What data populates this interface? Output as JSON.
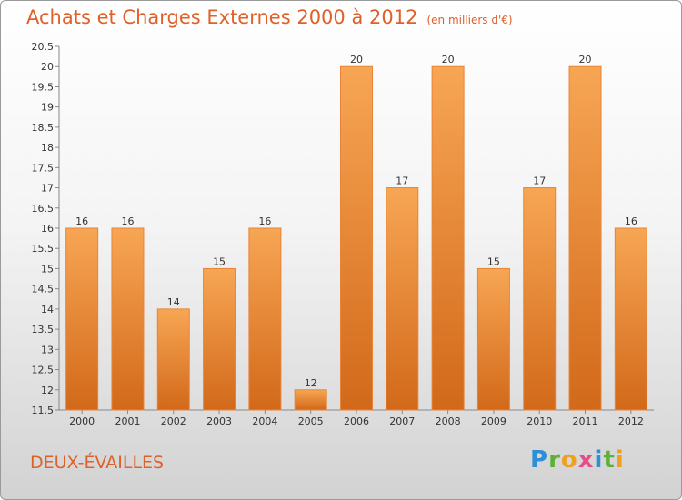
{
  "header": {
    "title": "Achats et Charges Externes 2000 à 2012",
    "subtitle": "(en milliers d'€)"
  },
  "footer": {
    "commune": "DEUX-ÉVAILLES",
    "logo_letters": [
      "P",
      "r",
      "o",
      "x",
      "i",
      "t",
      "i"
    ]
  },
  "colors": {
    "bar_light": "#f7a654",
    "bar_dark": "#d2691a",
    "title": "#e0602a"
  },
  "chart_data": {
    "type": "bar",
    "categories": [
      "2000",
      "2001",
      "2002",
      "2003",
      "2004",
      "2005",
      "2006",
      "2007",
      "2008",
      "2009",
      "2010",
      "2011",
      "2012"
    ],
    "values": [
      16,
      16,
      14,
      15,
      16,
      12,
      20,
      17,
      20,
      15,
      17,
      20,
      16
    ],
    "ylim": [
      11.5,
      20.5
    ],
    "yticks": [
      "11.5",
      "12",
      "12.5",
      "13",
      "13.5",
      "14",
      "14.5",
      "15",
      "15.5",
      "16",
      "16.5",
      "17",
      "17.5",
      "18",
      "18.5",
      "19",
      "19.5",
      "20",
      "20.5"
    ],
    "grid": false,
    "legend": "none"
  }
}
